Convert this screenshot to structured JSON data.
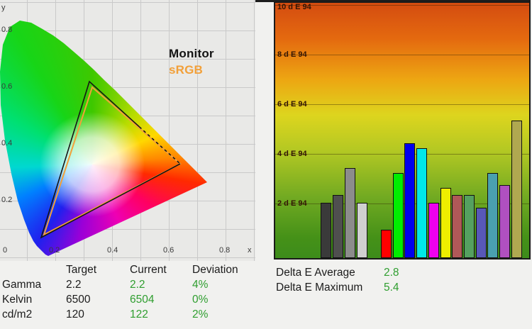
{
  "colors": {
    "ok_green": "#2f9e2f",
    "srgb_orange": "#F2A039",
    "monitor_black": "#151515",
    "gradient_top": "#d44c10",
    "gradient_bottom": "#3d8c1b"
  },
  "cie": {
    "legend": {
      "monitor": "Monitor",
      "srgb": "sRGB"
    },
    "axis": {
      "x_label": "x",
      "y_label": "y",
      "x_ticks": [
        "0",
        "0.2",
        "0.4",
        "0.6",
        "0.8"
      ],
      "y_ticks": [
        "0.8",
        "0.6",
        "0.4",
        "0.2"
      ]
    }
  },
  "chart_data": [
    {
      "type": "area",
      "title": "CIE 1931 xy chromaticity diagram with gamut triangles",
      "xlabel": "x",
      "ylabel": "y",
      "xlim": [
        0,
        0.9
      ],
      "ylim": [
        0,
        0.9
      ],
      "x_ticks": [
        0,
        0.2,
        0.4,
        0.6,
        0.8
      ],
      "y_ticks": [
        0.2,
        0.4,
        0.6,
        0.8
      ],
      "grid": true,
      "legend_position": "upper right",
      "series": [
        {
          "name": "Monitor",
          "color": "#151515",
          "line_style": "solid, dashed on lower green-red segment",
          "vertices_xy": [
            [
              0.32,
              0.62
            ],
            [
              0.64,
              0.33
            ],
            [
              0.15,
              0.07
            ]
          ]
        },
        {
          "name": "sRGB",
          "color": "#F2A039",
          "line_style": "solid",
          "vertices_xy": [
            [
              0.33,
              0.6
            ],
            [
              0.64,
              0.33
            ],
            [
              0.16,
              0.08
            ]
          ]
        }
      ]
    },
    {
      "type": "bar",
      "title": "Delta E 94 per measured color patch",
      "ylabel": "d E 94",
      "ylim": [
        0,
        10.3
      ],
      "grid": true,
      "gridlines": [
        {
          "value": 2,
          "label": "2 d E 94"
        },
        {
          "value": 4,
          "label": "4 d E 94"
        },
        {
          "value": 6,
          "label": "6 d E 94"
        },
        {
          "value": 8,
          "label": "8 d E 94"
        },
        {
          "value": 10,
          "label": "10 d E 94"
        }
      ],
      "bars": [
        {
          "color": "#3a3a3a",
          "value": 2.1
        },
        {
          "color": "#4f4f4f",
          "value": 2.4
        },
        {
          "color": "#8c8c8c",
          "value": 3.5
        },
        {
          "color": "#d0d0d0",
          "value": 2.1
        },
        {
          "color": "#ff0000",
          "value": 1.0
        },
        {
          "color": "#00ee00",
          "value": 3.3
        },
        {
          "color": "#0000ee",
          "value": 4.5
        },
        {
          "color": "#00e8e8",
          "value": 4.3
        },
        {
          "color": "#ee00ee",
          "value": 2.1
        },
        {
          "color": "#eeee00",
          "value": 2.7
        },
        {
          "color": "#b05858",
          "value": 2.4
        },
        {
          "color": "#55a060",
          "value": 2.4
        },
        {
          "color": "#5858b8",
          "value": 1.9
        },
        {
          "color": "#4aa0b0",
          "value": 3.3
        },
        {
          "color": "#b050c0",
          "value": 2.8
        },
        {
          "color": "#b0a850",
          "value": 5.4
        }
      ]
    }
  ],
  "table": {
    "headers": [
      "",
      "Target",
      "Current",
      "Deviation"
    ],
    "rows": [
      {
        "label": "Gamma",
        "target": "2.2",
        "current": "2.2",
        "deviation": "4%"
      },
      {
        "label": "Kelvin",
        "target": "6500",
        "current": "6504",
        "deviation": "0%"
      },
      {
        "label": "cd/m2",
        "target": "120",
        "current": "122",
        "deviation": "2%"
      }
    ]
  },
  "stats": {
    "rows": [
      {
        "label": "Delta E Average",
        "value": "2.8"
      },
      {
        "label": "Delta E Maximum",
        "value": "5.4"
      }
    ]
  }
}
